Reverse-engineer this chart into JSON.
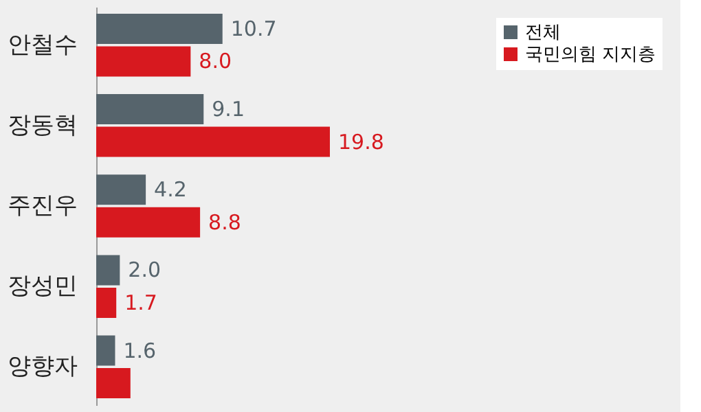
{
  "chart_data": {
    "type": "bar",
    "orientation": "horizontal",
    "categories": [
      "안철수",
      "장동혁",
      "주진우",
      "장성민",
      "양향자"
    ],
    "series": [
      {
        "name": "전체",
        "color": "#56646c",
        "values": [
          10.7,
          9.1,
          4.2,
          2.0,
          1.6
        ],
        "value_labels": [
          "10.7",
          "9.1",
          "4.2",
          "2.0",
          "1.6"
        ]
      },
      {
        "name": "국민의힘 지지층",
        "color": "#d7191f",
        "values": [
          8.0,
          19.8,
          8.8,
          1.7,
          2.9
        ],
        "value_labels": [
          "8.0",
          "19.8",
          "8.8",
          "1.7",
          null
        ]
      }
    ],
    "legend": "top right"
  }
}
